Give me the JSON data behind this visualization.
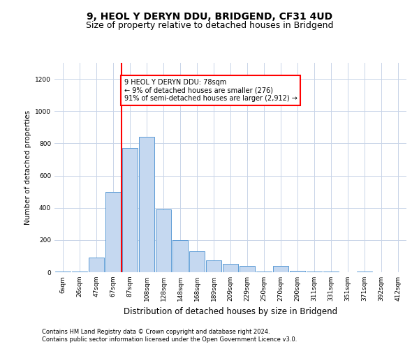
{
  "title_line1": "9, HEOL Y DERYN DDU, BRIDGEND, CF31 4UD",
  "title_line2": "Size of property relative to detached houses in Bridgend",
  "xlabel": "Distribution of detached houses by size in Bridgend",
  "ylabel": "Number of detached properties",
  "categories": [
    "6sqm",
    "26sqm",
    "47sqm",
    "67sqm",
    "87sqm",
    "108sqm",
    "128sqm",
    "148sqm",
    "168sqm",
    "189sqm",
    "209sqm",
    "229sqm",
    "250sqm",
    "270sqm",
    "290sqm",
    "311sqm",
    "331sqm",
    "351sqm",
    "371sqm",
    "392sqm",
    "412sqm"
  ],
  "values": [
    5,
    5,
    90,
    500,
    770,
    840,
    390,
    200,
    130,
    75,
    50,
    40,
    5,
    40,
    10,
    5,
    5,
    0,
    5,
    0,
    0
  ],
  "bar_color": "#c5d8f0",
  "bar_edge_color": "#5b9bd5",
  "red_line_index": 4,
  "annotation_text": "9 HEOL Y DERYN DDU: 78sqm\n← 9% of detached houses are smaller (276)\n91% of semi-detached houses are larger (2,912) →",
  "ylim": [
    0,
    1300
  ],
  "yticks": [
    0,
    200,
    400,
    600,
    800,
    1000,
    1200
  ],
  "footer_line1": "Contains HM Land Registry data © Crown copyright and database right 2024.",
  "footer_line2": "Contains public sector information licensed under the Open Government Licence v3.0.",
  "background_color": "#ffffff",
  "grid_color": "#c8d4e8",
  "title_fontsize": 10,
  "subtitle_fontsize": 9,
  "xlabel_fontsize": 8.5,
  "ylabel_fontsize": 7.5,
  "tick_fontsize": 6.5,
  "footer_fontsize": 6
}
